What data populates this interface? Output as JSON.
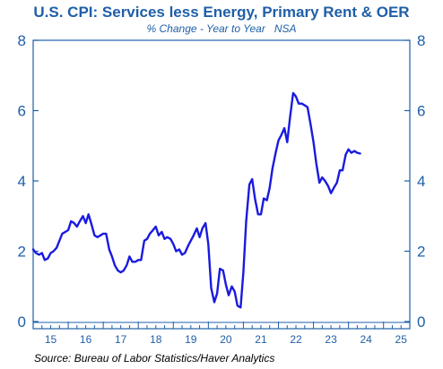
{
  "chart_data": {
    "type": "line",
    "title": "U.S. CPI: Services less Energy, Primary Rent & OER",
    "subtitle": "% Change - Year to Year   NSA",
    "source": "Source: Bureau of Labor Statistics/Haver Analytics",
    "xlabel": "",
    "ylabel": "",
    "ylim": [
      0,
      8
    ],
    "xlim": [
      2015.0,
      2025.75
    ],
    "y_ticks": [
      0,
      2,
      4,
      6,
      8
    ],
    "x_tick_labels": [
      "15",
      "16",
      "17",
      "18",
      "19",
      "20",
      "21",
      "22",
      "23",
      "24",
      "25"
    ],
    "x_tick_label_years": [
      2015,
      2016,
      2017,
      2018,
      2019,
      2020,
      2021,
      2022,
      2023,
      2024,
      2025
    ],
    "grid": false,
    "line_color": "#1a1adf",
    "axis_color": "#1f5fa8",
    "series": [
      {
        "x": [
          2015.0,
          2015.08,
          2015.17,
          2015.25,
          2015.33,
          2015.42,
          2015.5,
          2015.58,
          2015.67,
          2015.75,
          2015.83,
          2015.92,
          2016.0,
          2016.08,
          2016.17,
          2016.25,
          2016.33,
          2016.42,
          2016.5,
          2016.58,
          2016.67,
          2016.75,
          2016.83,
          2016.92,
          2017.0,
          2017.08,
          2017.17,
          2017.25,
          2017.33,
          2017.42,
          2017.5,
          2017.58,
          2017.67,
          2017.75,
          2017.83,
          2017.92,
          2018.0,
          2018.08,
          2018.17,
          2018.25,
          2018.33,
          2018.42,
          2018.5,
          2018.58,
          2018.67,
          2018.75,
          2018.83,
          2018.92,
          2019.0,
          2019.08,
          2019.17,
          2019.25,
          2019.33,
          2019.42,
          2019.5,
          2019.58,
          2019.67,
          2019.75,
          2019.83,
          2019.92,
          2020.0,
          2020.08,
          2020.17,
          2020.25,
          2020.33,
          2020.42,
          2020.5,
          2020.58,
          2020.67,
          2020.75,
          2020.83,
          2020.92,
          2021.0,
          2021.08,
          2021.17,
          2021.25,
          2021.33,
          2021.42,
          2021.5,
          2021.58,
          2021.67,
          2021.75,
          2021.83,
          2021.92,
          2022.0,
          2022.08,
          2022.17,
          2022.25,
          2022.33,
          2022.42,
          2022.5,
          2022.58,
          2022.67,
          2022.75,
          2022.83,
          2022.92,
          2023.0,
          2023.08,
          2023.17,
          2023.25,
          2023.33,
          2023.42,
          2023.5,
          2023.58,
          2023.67,
          2023.75,
          2023.83,
          2023.92,
          2024.0,
          2024.08,
          2024.17,
          2024.25,
          2024.33
        ],
        "y": [
          2.05,
          1.95,
          1.9,
          1.95,
          1.75,
          1.8,
          1.95,
          2.0,
          2.1,
          2.3,
          2.5,
          2.55,
          2.6,
          2.85,
          2.8,
          2.7,
          2.85,
          3.0,
          2.8,
          3.05,
          2.75,
          2.45,
          2.4,
          2.45,
          2.5,
          2.5,
          2.05,
          1.85,
          1.6,
          1.45,
          1.4,
          1.45,
          1.6,
          1.85,
          1.7,
          1.7,
          1.75,
          1.75,
          2.3,
          2.35,
          2.5,
          2.6,
          2.7,
          2.45,
          2.55,
          2.35,
          2.4,
          2.35,
          2.2,
          2.0,
          2.05,
          1.9,
          1.95,
          2.15,
          2.3,
          2.45,
          2.65,
          2.4,
          2.65,
          2.8,
          2.2,
          0.95,
          0.55,
          0.8,
          1.5,
          1.45,
          1.05,
          0.75,
          1.0,
          0.85,
          0.45,
          0.4,
          1.4,
          2.85,
          3.9,
          4.05,
          3.5,
          3.05,
          3.05,
          3.5,
          3.45,
          3.8,
          4.35,
          4.8,
          5.15,
          5.3,
          5.5,
          5.1,
          5.8,
          6.5,
          6.4,
          6.2,
          6.2,
          6.15,
          6.1,
          5.6,
          5.1,
          4.5,
          3.95,
          4.1,
          4.0,
          3.85,
          3.65,
          3.8,
          3.95,
          4.3,
          4.3,
          4.75,
          4.9,
          4.8,
          4.85,
          4.8,
          4.78
        ]
      }
    ]
  }
}
